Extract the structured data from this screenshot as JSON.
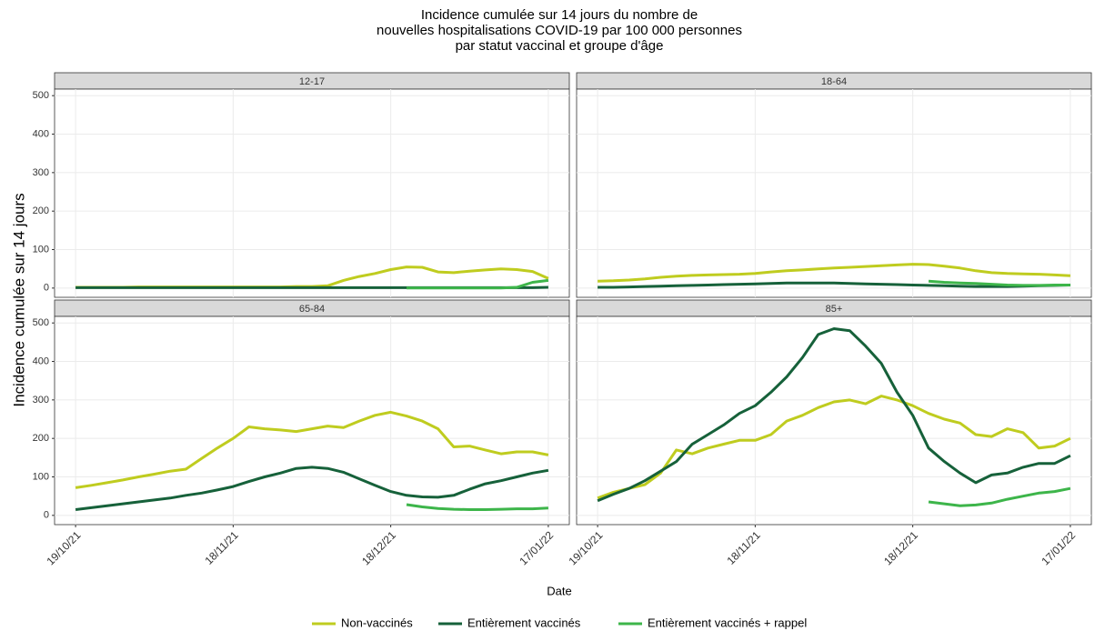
{
  "chart_data": {
    "type": "line",
    "title": [
      "Incidence cumulée sur 14 jours du nombre de",
      "nouvelles hospitalisations COVID-19 par 100 000 personnes",
      "par statut vaccinal et groupe d'âge"
    ],
    "xlabel": "Date",
    "ylabel": "Incidence cumulée sur 14 jours",
    "x": [
      "19/10/21",
      "22/10/21",
      "25/10/21",
      "28/10/21",
      "31/10/21",
      "03/11/21",
      "06/11/21",
      "09/11/21",
      "12/11/21",
      "15/11/21",
      "18/11/21",
      "21/11/21",
      "24/11/21",
      "27/11/21",
      "30/11/21",
      "03/12/21",
      "06/12/21",
      "09/12/21",
      "12/12/21",
      "15/12/21",
      "18/12/21",
      "21/12/21",
      "24/12/21",
      "27/12/21",
      "30/12/21",
      "02/01/22",
      "05/01/22",
      "08/01/22",
      "11/01/22",
      "14/01/22",
      "17/01/22"
    ],
    "xlim": [
      "15/10/21",
      "21/01/22"
    ],
    "xticks": [
      "19/10/21",
      "18/11/21",
      "18/12/21",
      "17/01/22"
    ],
    "ylim": [
      -24,
      517
    ],
    "yticks": [
      0,
      100,
      200,
      300,
      400,
      500
    ],
    "grid": true,
    "series": [
      {
        "name": "Non-vaccinés",
        "color": "#bfcc1f"
      },
      {
        "name": "Entièrement vaccinés",
        "color": "#16613a"
      },
      {
        "name": "Entièrement vaccinés + rappel",
        "color": "#3db54a"
      }
    ],
    "panels": [
      {
        "title": "12-17",
        "values": [
          [
            2,
            2,
            2,
            2,
            3,
            3,
            3,
            3,
            3,
            3,
            3,
            3,
            3,
            3,
            4,
            4,
            6,
            20,
            30,
            38,
            48,
            55,
            54,
            42,
            40,
            44,
            47,
            50,
            48,
            43,
            25
          ],
          [
            1,
            1,
            1,
            1,
            1,
            1,
            1,
            1,
            1,
            1,
            1,
            1,
            1,
            1,
            1,
            1,
            1,
            1,
            1,
            1,
            1,
            1,
            1,
            1,
            1,
            1,
            1,
            1,
            1,
            1,
            2
          ],
          [
            null,
            null,
            null,
            null,
            null,
            null,
            null,
            null,
            null,
            null,
            null,
            null,
            null,
            null,
            null,
            null,
            null,
            null,
            null,
            null,
            null,
            0,
            0,
            0,
            0,
            0,
            0,
            0,
            2,
            15,
            20
          ]
        ]
      },
      {
        "title": "18-64",
        "values": [
          [
            18,
            19,
            21,
            24,
            28,
            31,
            33,
            34,
            35,
            36,
            38,
            42,
            45,
            47,
            50,
            52,
            54,
            56,
            58,
            60,
            62,
            61,
            57,
            52,
            45,
            40,
            38,
            37,
            36,
            34,
            32
          ],
          [
            2,
            2,
            3,
            4,
            5,
            6,
            7,
            8,
            9,
            10,
            11,
            12,
            13,
            13,
            13,
            13,
            12,
            11,
            10,
            9,
            8,
            7,
            6,
            5,
            4,
            4,
            4,
            5,
            6,
            7,
            8
          ],
          [
            null,
            null,
            null,
            null,
            null,
            null,
            null,
            null,
            null,
            null,
            null,
            null,
            null,
            null,
            null,
            null,
            null,
            null,
            null,
            null,
            null,
            18,
            15,
            13,
            12,
            10,
            8,
            7,
            7,
            8,
            8
          ]
        ]
      },
      {
        "title": "65-84",
        "values": [
          [
            72,
            78,
            85,
            92,
            100,
            107,
            115,
            120,
            148,
            175,
            200,
            230,
            225,
            222,
            218,
            225,
            232,
            228,
            245,
            260,
            268,
            258,
            245,
            225,
            178,
            180,
            170,
            160,
            165,
            165,
            157
          ],
          [
            15,
            20,
            25,
            30,
            35,
            40,
            45,
            52,
            58,
            66,
            75,
            88,
            100,
            110,
            122,
            125,
            122,
            112,
            95,
            78,
            62,
            52,
            48,
            47,
            52,
            68,
            82,
            90,
            100,
            110,
            117
          ],
          [
            null,
            null,
            null,
            null,
            null,
            null,
            null,
            null,
            null,
            null,
            null,
            null,
            null,
            null,
            null,
            null,
            null,
            null,
            null,
            null,
            null,
            28,
            22,
            18,
            16,
            15,
            15,
            16,
            17,
            17,
            19
          ]
        ]
      },
      {
        "title": "85+",
        "values": [
          [
            45,
            60,
            70,
            80,
            110,
            170,
            160,
            175,
            185,
            195,
            195,
            210,
            245,
            260,
            280,
            295,
            300,
            290,
            310,
            300,
            285,
            265,
            250,
            240,
            210,
            205,
            225,
            215,
            175,
            180,
            200
          ],
          [
            38,
            55,
            70,
            90,
            115,
            140,
            185,
            210,
            235,
            265,
            285,
            320,
            360,
            410,
            470,
            485,
            480,
            440,
            395,
            320,
            260,
            175,
            140,
            110,
            85,
            105,
            110,
            125,
            135,
            135,
            155
          ],
          [
            null,
            null,
            null,
            null,
            null,
            null,
            null,
            null,
            null,
            null,
            null,
            null,
            null,
            null,
            null,
            null,
            null,
            null,
            null,
            null,
            null,
            35,
            30,
            25,
            27,
            32,
            42,
            50,
            58,
            62,
            70
          ]
        ]
      }
    ]
  }
}
